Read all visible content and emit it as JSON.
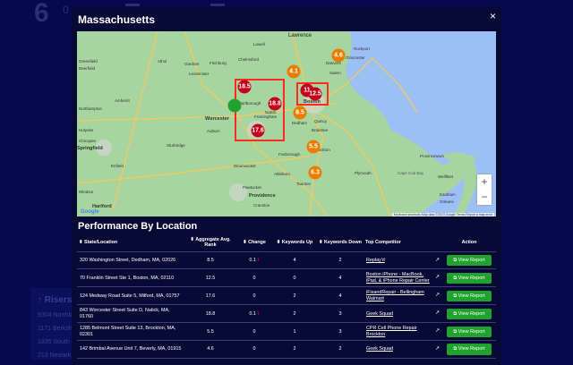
{
  "background": {
    "number": "6",
    "sub": "0",
    "risers_title": "↑ Risers",
    "risers": [
      "9304 Northla",
      "1171 Berkshi",
      "1835 South F",
      "213 Newark"
    ]
  },
  "modal": {
    "title": "Massachusetts",
    "close_icon": "×"
  },
  "map": {
    "markers": [
      {
        "label": "4.6",
        "color": "#ea7d00"
      },
      {
        "label": "4.1",
        "color": "#ea7d00"
      },
      {
        "label": "18.5",
        "color": "#c4001d"
      },
      {
        "label": "11",
        "color": "#c4001d"
      },
      {
        "label": "12.5",
        "color": "#c4001d"
      },
      {
        "label": "",
        "color": "#1fa22e"
      },
      {
        "label": "18.8",
        "color": "#c4001d"
      },
      {
        "label": "8.5",
        "color": "#ea7d00"
      },
      {
        "label": "17.6",
        "color": "#c4001d"
      },
      {
        "label": "5.5",
        "color": "#ea7d00"
      },
      {
        "label": "6.3",
        "color": "#ea7d00"
      }
    ],
    "cities": [
      "Lawrence",
      "Lowell",
      "Gloucester",
      "Rockport",
      "Danvers",
      "Salem",
      "Fitchburg",
      "Leominster",
      "Greenfield",
      "Deerfield",
      "Athol",
      "Gardner",
      "Amherst",
      "Northampton",
      "Worcester",
      "Framingham",
      "Marlborough",
      "Boston",
      "Quincy",
      "Dedham",
      "Braintree",
      "Brockton",
      "Holyoke",
      "Chicopee",
      "Springfield",
      "Auburn",
      "Sturbridge",
      "Woonsocket",
      "Foxborough",
      "Attleboro",
      "Taunton",
      "Plymouth",
      "Pawtucket",
      "Providence",
      "Cranston",
      "Enfield",
      "Windsor",
      "Hartford",
      "Provincetown",
      "Wellfleet",
      "Eastham",
      "Orleans",
      "Cape Cod Bay",
      "Chelmsford",
      "Natick"
    ],
    "zoom_in": "+",
    "zoom_out": "−",
    "attribution": "Keyboard shortcuts   Map data ©2023 Google   Terms   Report a map error",
    "logo": "Google"
  },
  "performance": {
    "title": "Performance By Location",
    "columns": [
      "State/Location",
      "Aggregate Avg. Rank",
      "Change",
      "Keywords Up",
      "Keywords Down",
      "Top Competitor",
      "Action"
    ],
    "rows": [
      {
        "location": "320 Washington Street, Dedham, MA, 02026",
        "rank": "8.5",
        "change": "0.1",
        "down": true,
        "up": "4",
        "kdown": "2",
        "competitor": "Replay'd",
        "action": "View Report"
      },
      {
        "location": "70 Franklin Street Ste 1, Boston, MA, 02110",
        "rank": "12.5",
        "change": "0",
        "down": false,
        "up": "0",
        "kdown": "4",
        "competitor": "Boston iPhone - MacBook, iPad, & iPhone Repair Center",
        "action": "View Report"
      },
      {
        "location": "124 Medway Road Suite 5, Milford, MA, 01757",
        "rank": "17.6",
        "change": "0",
        "down": false,
        "up": "2",
        "kdown": "4",
        "competitor": "iFixandRepair - Bellingham Walmart",
        "action": "View Report"
      },
      {
        "location": "843 Worcester Street Suite D, Natick, MA, 01760",
        "rank": "18.8",
        "change": "0.1",
        "down": true,
        "up": "2",
        "kdown": "3",
        "competitor": "Geek Squad",
        "action": "View Report"
      },
      {
        "location": "1285 Belmont Street Suite 13, Brockton, MA, 02301",
        "rank": "5.5",
        "change": "0",
        "down": false,
        "up": "1",
        "kdown": "3",
        "competitor": "CPR Cell Phone Repair Brockton",
        "action": "View Report"
      },
      {
        "location": "142 Brimbal Avenue Unit 7, Beverly, MA, 01915",
        "rank": "4.6",
        "change": "0",
        "down": false,
        "up": "2",
        "kdown": "2",
        "competitor": "Geek Squad",
        "action": "View Report"
      }
    ]
  }
}
